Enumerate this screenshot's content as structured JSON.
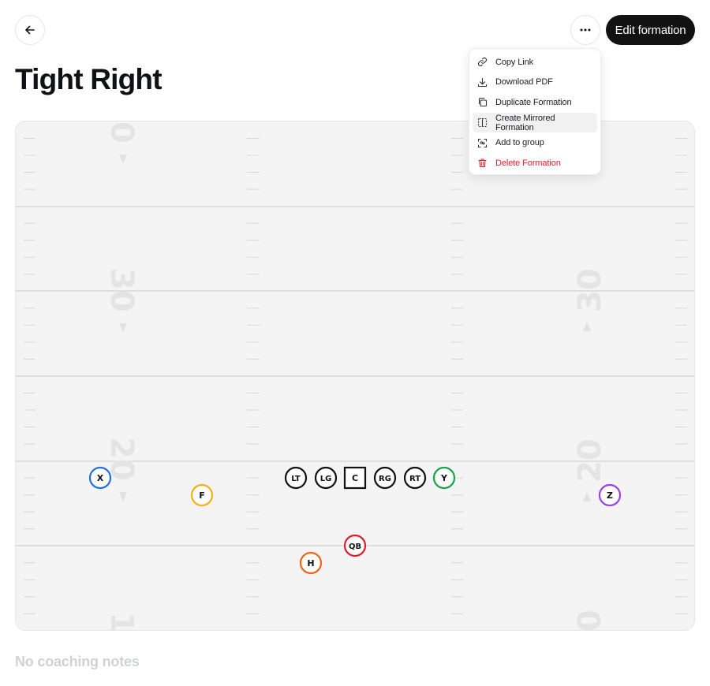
{
  "header": {
    "back_icon": "arrow-left-icon",
    "more_icon": "more-horizontal-icon",
    "edit_label": "Edit formation"
  },
  "page": {
    "title": "Tight Right",
    "notes": "No coaching notes"
  },
  "menu": {
    "items": [
      {
        "label": "Copy Link",
        "icon": "link-icon"
      },
      {
        "label": "Download PDF",
        "icon": "download-icon"
      },
      {
        "label": "Duplicate Formation",
        "icon": "copy-icon"
      },
      {
        "label": "Create Mirrored Formation",
        "icon": "mirror-icon",
        "active": true
      },
      {
        "label": "Add to group",
        "icon": "group-icon"
      },
      {
        "label": "Delete Formation",
        "icon": "trash-icon",
        "danger": true
      }
    ]
  },
  "field": {
    "yard_numbers": {
      "left": [
        "0",
        "30",
        "20",
        "1"
      ],
      "right": [
        "30",
        "20",
        "0"
      ]
    },
    "players": [
      {
        "label": "X",
        "shape": "circle",
        "color": "#1f6fe8"
      },
      {
        "label": "F",
        "shape": "circle",
        "color": "#f2b01e"
      },
      {
        "label": "LT",
        "shape": "circle",
        "color": "#111111"
      },
      {
        "label": "LG",
        "shape": "circle",
        "color": "#111111"
      },
      {
        "label": "C",
        "shape": "square",
        "color": "#111111"
      },
      {
        "label": "RG",
        "shape": "circle",
        "color": "#111111"
      },
      {
        "label": "RT",
        "shape": "circle",
        "color": "#111111"
      },
      {
        "label": "Y",
        "shape": "circle",
        "color": "#18a34a"
      },
      {
        "label": "Z",
        "shape": "circle",
        "color": "#9b3fe6"
      },
      {
        "label": "QB",
        "shape": "circle",
        "color": "#e11d2a"
      },
      {
        "label": "H",
        "shape": "circle",
        "color": "#f0641a"
      }
    ]
  }
}
